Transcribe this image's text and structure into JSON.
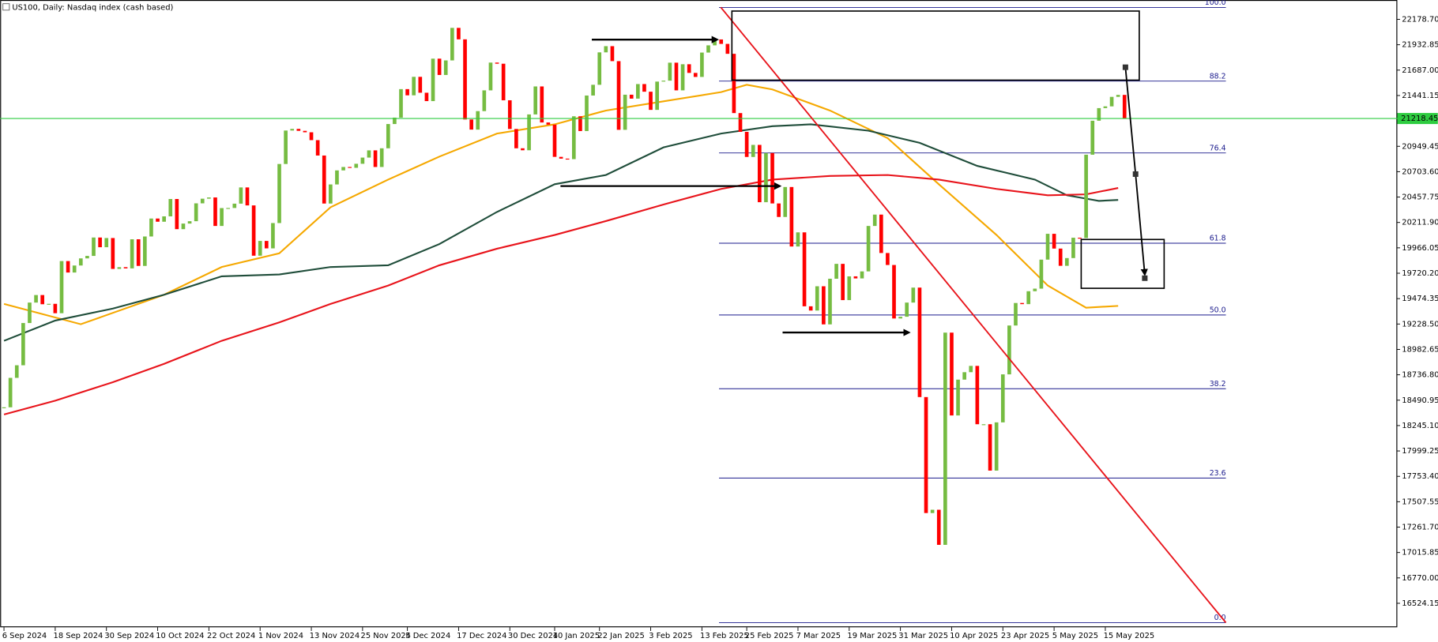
{
  "chart_data": {
    "type": "candlestick",
    "title": "US100, Daily:  Nasdaq index (cash based)",
    "close": [
      18422,
      18707,
      18829,
      19238,
      19436,
      19509,
      19420,
      19424,
      19333,
      19838,
      19727,
      19795,
      19864,
      19888,
      20066,
      19972,
      20061,
      19762,
      19779,
      19767,
      20049,
      19791,
      20076,
      20250,
      20219,
      20271,
      20439,
      20147,
      20201,
      20224,
      20397,
      20442,
      20454,
      20178,
      20351,
      20352,
      20394,
      20551,
      20377,
      19890,
      20033,
      19961,
      20206,
      20778,
      21102,
      21118,
      21099,
      21085,
      21009,
      20860,
      20395,
      20580,
      20716,
      20749,
      20741,
      20780,
      20840,
      20910,
      20749,
      20930,
      21165,
      21227,
      21503,
      21443,
      21622,
      21468,
      21387,
      21798,
      21640,
      21781,
      22096,
      21985,
      21209,
      21111,
      21290,
      21491,
      21760,
      21749,
      21395,
      21117,
      20930,
      20911,
      21258,
      21529,
      21180,
      21159,
      20847,
      20830,
      20825,
      21240,
      21097,
      21441,
      21545,
      21859,
      21919,
      21774,
      21109,
      21449,
      21411,
      21552,
      21478,
      21302,
      21576,
      21585,
      21759,
      21491,
      21744,
      21660,
      21621,
      21857,
      21927,
      21984,
      21941,
      21845,
      21271,
      21089,
      20846,
      20963,
      20408,
      20884,
      20396,
      20265,
      20555,
      19979,
      20116,
      19400,
      19359,
      19594,
      19225,
      19667,
      19811,
      19460,
      19690,
      19670,
      19738,
      20178,
      20288,
      19916,
      19800,
      19282,
      19299,
      19436,
      19581,
      18521,
      17398,
      17430,
      17090,
      19145,
      18343,
      18690,
      18762,
      18823,
      18258,
      18258,
      17809,
      18276,
      18741,
      19214,
      19432,
      19421,
      19546,
      19571,
      19852,
      20102,
      19959,
      19792,
      19867,
      20064,
      20061,
      20868,
      21197,
      21319,
      21336,
      21428,
      21447,
      21218
    ],
    "up_color": "#76bc42",
    "down_color": "#ff0000",
    "xlim": [
      -0.6,
      217.6
    ],
    "xticks": [
      {
        "value": 0,
        "label": "6 Sep 2024"
      },
      {
        "value": 8,
        "label": "18 Sep 2024"
      },
      {
        "value": 16,
        "label": "30 Sep 2024"
      },
      {
        "value": 24,
        "label": "10 Oct 2024"
      },
      {
        "value": 32,
        "label": "22 Oct 2024"
      },
      {
        "value": 40,
        "label": "1 Nov 2024"
      },
      {
        "value": 48,
        "label": "13 Nov 2024"
      },
      {
        "value": 56,
        "label": "25 Nov 2024"
      },
      {
        "value": 63,
        "label": "5 Dec 2024"
      },
      {
        "value": 71,
        "label": "17 Dec 2024"
      },
      {
        "value": 79,
        "label": "30 Dec 2024"
      },
      {
        "value": 86,
        "label": "10 Jan 2025"
      },
      {
        "value": 93,
        "label": "22 Jan 2025"
      },
      {
        "value": 101,
        "label": "3 Feb 2025"
      },
      {
        "value": 109,
        "label": "13 Feb 2025"
      },
      {
        "value": 116,
        "label": "25 Feb 2025"
      },
      {
        "value": 124,
        "label": "7 Mar 2025"
      },
      {
        "value": 132,
        "label": "19 Mar 2025"
      },
      {
        "value": 140,
        "label": "31 Mar 2025"
      },
      {
        "value": 148,
        "label": "10 Apr 2025"
      },
      {
        "value": 156,
        "label": "23 Apr 2025"
      },
      {
        "value": 164,
        "label": "5 May 2025"
      },
      {
        "value": 172,
        "label": "15 May 2025"
      }
    ],
    "ylim": [
      16292,
      22366
    ],
    "yticks": [
      {
        "value": 22178.7,
        "label": "22178.70"
      },
      21932.85,
      {
        "value": 21687,
        "label": "21687.00"
      },
      21441.15,
      20949.45,
      {
        "value": 20703.6,
        "label": "20703.60"
      },
      20457.75,
      {
        "value": 20211.9,
        "label": "20211.90"
      },
      19966.05,
      {
        "value": 19720.2,
        "label": "19720.20"
      },
      19474.35,
      {
        "value": 19228.5,
        "label": "19228.50"
      },
      18982.65,
      {
        "value": 18736.8,
        "label": "18736.80"
      },
      18490.95,
      {
        "value": 18245.1,
        "label": "18245.10"
      },
      17999.25,
      {
        "value": 17753.4,
        "label": "17753.40"
      },
      17507.55,
      {
        "value": 17261.7,
        "label": "17261.70"
      },
      17015.85,
      {
        "value": 16770,
        "label": "16770.00"
      },
      16524.15
    ],
    "last_price": 21218.45,
    "last_price_color": "#2ecc40",
    "moving_averages": [
      {
        "color": "#f5a800",
        "x": [
          0,
          12,
          25,
          34,
          43,
          51,
          60,
          68,
          77,
          86,
          94,
          103,
          112,
          116,
          120,
          129,
          138,
          146,
          155,
          163,
          169,
          174
        ],
        "values": [
          19423,
          19226,
          19512,
          19780,
          19913,
          20359,
          20627,
          20850,
          21073,
          21162,
          21296,
          21385,
          21474,
          21545,
          21500,
          21296,
          21028,
          20582,
          20091,
          19601,
          19386,
          19404
        ]
      },
      {
        "color": "#1f4d3a",
        "x": [
          0,
          8,
          17,
          25,
          34,
          43,
          51,
          60,
          68,
          77,
          86,
          94,
          103,
          112,
          120,
          126,
          135,
          143,
          152,
          161,
          166,
          171,
          174
        ],
        "values": [
          19066,
          19262,
          19378,
          19512,
          19690,
          19708,
          19780,
          19797,
          20002,
          20314,
          20582,
          20671,
          20939,
          21073,
          21144,
          21162,
          21100,
          20983,
          20760,
          20627,
          20475,
          20421,
          20430
        ]
      },
      {
        "color": "#e8141b",
        "x": [
          0,
          8,
          17,
          25,
          34,
          43,
          51,
          60,
          68,
          77,
          86,
          94,
          103,
          112,
          120,
          129,
          138,
          146,
          155,
          163,
          169,
          174
        ],
        "values": [
          18352,
          18486,
          18665,
          18843,
          19066,
          19244,
          19423,
          19601,
          19797,
          19958,
          20091,
          20225,
          20386,
          20537,
          20627,
          20662,
          20671,
          20627,
          20537,
          20475,
          20484,
          20546
        ]
      }
    ],
    "fib_color": "#1a1a8c",
    "fib_levels": [
      {
        "label": "100.0",
        "price": 22294
      },
      {
        "label": "88.2",
        "price": 21581
      },
      {
        "label": "76.4",
        "price": 20885
      },
      {
        "label": "61.8",
        "price": 20011
      },
      {
        "label": "50.0",
        "price": 19316
      },
      {
        "label": "38.2",
        "price": 18602
      },
      {
        "label": "23.6",
        "price": 17737
      },
      {
        "label": "0.0",
        "price": 16337
      }
    ]
  }
}
